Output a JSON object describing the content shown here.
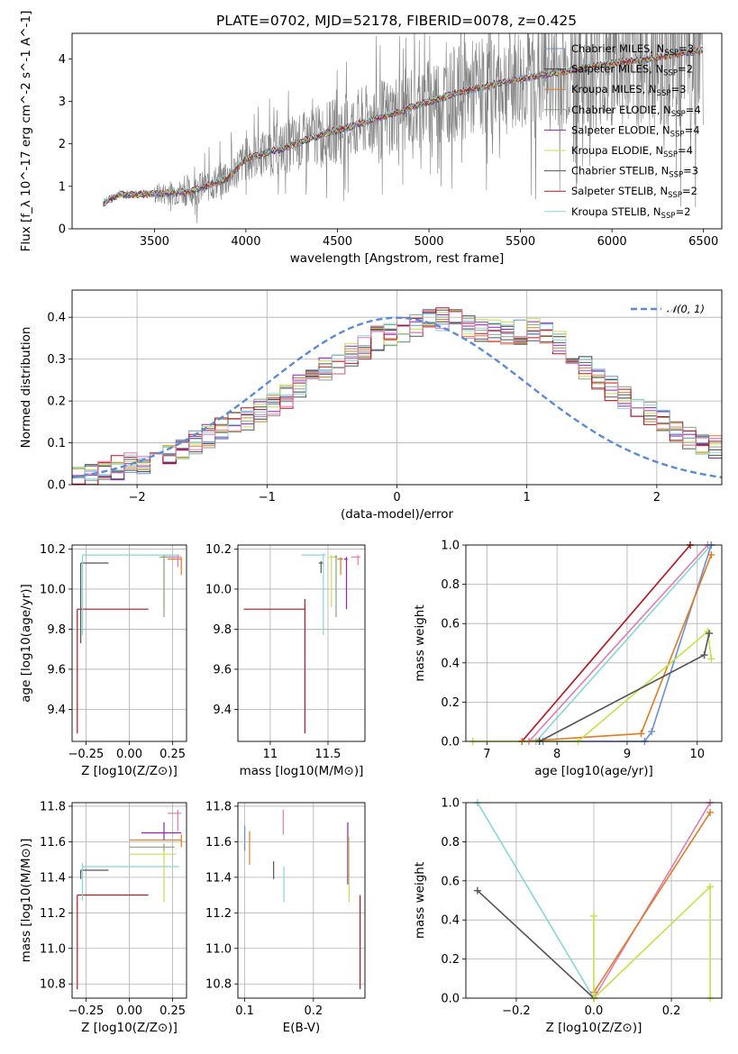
{
  "figure": {
    "title": "PLATE=0702, MJD=52178, FIBERID=0078, z=0.425"
  },
  "colors": {
    "Chabrier MILES": "#6a8fd6",
    "Salpeter MILES": "#3a3a3a",
    "Kroupa MILES": "#e07b23",
    "Chabrier ELODIE": "#8aa08a",
    "Salpeter ELODIE": "#8f22b8",
    "Kroupa ELODIE": "#c6e04a",
    "Chabrier STELIB": "#555555",
    "Salpeter STELIB": "#b5121b",
    "Kroupa STELIB": "#86d6d8",
    "pink": "#e37ab4",
    "data": "#808080",
    "normal": "#5b8bd5",
    "grid": "#b0b0b0"
  },
  "chart_data": [
    {
      "id": "spectrum",
      "type": "line",
      "title": "PLATE=0702, MJD=52178, FIBERID=0078, z=0.425",
      "xlabel": "wavelength [Angstrom, rest frame]",
      "ylabel": "Flux [f_λ 10^-17 erg cm^-2 s^-1 A^-1]",
      "xlim": [
        3050,
        6600
      ],
      "ylim": [
        0,
        4.6
      ],
      "xticks": [
        3500,
        4000,
        4500,
        5000,
        5500,
        6000,
        6500
      ],
      "yticks": [
        0,
        1,
        2,
        3,
        4
      ],
      "grid": false,
      "legend_position": "top-right",
      "data_range": [
        3220,
        6500
      ],
      "continuum": [
        [
          3220,
          0.6
        ],
        [
          3300,
          0.8
        ],
        [
          3500,
          0.82
        ],
        [
          3700,
          0.88
        ],
        [
          3900,
          1.2
        ],
        [
          4000,
          1.65
        ],
        [
          4200,
          1.9
        ],
        [
          4400,
          2.2
        ],
        [
          4600,
          2.45
        ],
        [
          4800,
          2.7
        ],
        [
          5000,
          3.0
        ],
        [
          5200,
          3.25
        ],
        [
          5400,
          3.45
        ],
        [
          5600,
          3.6
        ],
        [
          5800,
          3.75
        ],
        [
          6000,
          3.9
        ],
        [
          6200,
          4.0
        ],
        [
          6400,
          4.15
        ],
        [
          6500,
          4.2
        ]
      ],
      "legend": [
        {
          "label": "Chabrier MILES, N",
          "sub": "SSP",
          "suffix": "=3",
          "series": "Chabrier MILES"
        },
        {
          "label": "Salpeter MILES, N",
          "sub": "SSP",
          "suffix": "=2",
          "series": "Salpeter MILES"
        },
        {
          "label": "Kroupa MILES, N",
          "sub": "SSP",
          "suffix": "=3",
          "series": "Kroupa MILES"
        },
        {
          "label": "Chabrier ELODIE, N",
          "sub": "SSP",
          "suffix": "=4",
          "series": "Chabrier ELODIE"
        },
        {
          "label": "Salpeter ELODIE, N",
          "sub": "SSP",
          "suffix": "=4",
          "series": "Salpeter ELODIE"
        },
        {
          "label": "Kroupa ELODIE, N",
          "sub": "SSP",
          "suffix": "=4",
          "series": "Kroupa ELODIE"
        },
        {
          "label": "Chabrier STELIB, N",
          "sub": "SSP",
          "suffix": "=3",
          "series": "Chabrier STELIB"
        },
        {
          "label": "Salpeter STELIB, N",
          "sub": "SSP",
          "suffix": "=2",
          "series": "Salpeter STELIB"
        },
        {
          "label": "Kroupa STELIB, N",
          "sub": "SSP",
          "suffix": "=2",
          "series": "Kroupa STELIB"
        }
      ]
    },
    {
      "id": "residuals",
      "type": "histogram",
      "xlabel": "(data-model)/error",
      "ylabel": "Normed distribution",
      "xlim": [
        -2.5,
        2.5
      ],
      "ylim": [
        0,
        0.465
      ],
      "xticks": [
        -2,
        -1,
        0,
        1,
        2
      ],
      "yticks": [
        0.0,
        0.1,
        0.2,
        0.3,
        0.4
      ],
      "grid": true,
      "legend_position": "top-right",
      "legend": "N(0,1)",
      "bin_edges_start": -2.5,
      "bin_width": 0.1,
      "base_profile": [
        0.02,
        0.025,
        0.03,
        0.04,
        0.05,
        0.055,
        0.06,
        0.07,
        0.085,
        0.1,
        0.115,
        0.13,
        0.145,
        0.16,
        0.175,
        0.19,
        0.21,
        0.235,
        0.26,
        0.275,
        0.29,
        0.31,
        0.33,
        0.35,
        0.36,
        0.37,
        0.38,
        0.39,
        0.395,
        0.39,
        0.38,
        0.37,
        0.365,
        0.36,
        0.365,
        0.37,
        0.36,
        0.34,
        0.31,
        0.28,
        0.25,
        0.23,
        0.21,
        0.19,
        0.17,
        0.15,
        0.13,
        0.115,
        0.1,
        0.09
      ],
      "normal_curve": {
        "mean": 0,
        "sigma": 1
      }
    },
    {
      "id": "age_vs_Z",
      "type": "errorbar",
      "xlabel": "Z [log10(Z/Z⊙)]",
      "ylabel": "age  [log10(age/yr)]",
      "xlim": [
        -0.33,
        0.33
      ],
      "ylim": [
        9.24,
        10.22
      ],
      "xticks": [
        -0.25,
        0.0,
        0.25
      ],
      "xticklabels": [
        "−0.25",
        "0.00",
        "0.25"
      ],
      "yticks": [
        9.4,
        9.6,
        9.8,
        10.0,
        10.2
      ],
      "grid": true,
      "points": [
        {
          "s": "Salpeter STELIB",
          "x": -0.3,
          "y": 9.9,
          "xe": [
            0,
            0.41
          ],
          "ye": [
            0.62,
            0
          ]
        },
        {
          "s": "Salpeter STELIB",
          "x": 0.11,
          "y": 9.9,
          "xe": [
            0,
            0
          ],
          "ye": [
            0,
            0
          ]
        },
        {
          "s": "Chabrier STELIB",
          "x": -0.28,
          "y": 10.13,
          "xe": [
            0,
            0.16
          ],
          "ye": [
            0.4,
            0
          ]
        },
        {
          "s": "Kroupa STELIB",
          "x": -0.27,
          "y": 10.17,
          "xe": [
            0,
            0.56
          ],
          "ye": [
            0.4,
            0
          ]
        },
        {
          "s": "Kroupa ELODIE",
          "x": 0.2,
          "y": 10.16,
          "xe": [
            0.03,
            0.07
          ],
          "ye": [
            0.25,
            0.01
          ]
        },
        {
          "s": "Chabrier ELODIE",
          "x": 0.2,
          "y": 10.16,
          "xe": [
            0.02,
            0.06
          ],
          "ye": [
            0.3,
            0.01
          ]
        },
        {
          "s": "Kroupa MILES",
          "x": 0.3,
          "y": 10.15,
          "xe": [
            0.08,
            0.0
          ],
          "ye": [
            0.08,
            0.01
          ]
        },
        {
          "s": "pink",
          "x": 0.28,
          "y": 10.16,
          "xe": [
            0.06,
            0.02
          ],
          "ye": [
            0.05,
            0.01
          ]
        }
      ]
    },
    {
      "id": "age_vs_mass",
      "type": "errorbar",
      "xlabel": "mass [log10(M/M⊙)]",
      "ylabel": "",
      "xlim": [
        10.72,
        11.82
      ],
      "ylim": [
        9.24,
        10.22
      ],
      "xticks": [
        11.0,
        11.5
      ],
      "yticks": [
        9.4,
        9.6,
        9.8,
        10.0,
        10.2
      ],
      "grid": true,
      "points": [
        {
          "s": "Salpeter STELIB",
          "x": 11.3,
          "y": 9.9,
          "xe": [
            0.53,
            0
          ],
          "ye": [
            0.62,
            0.05
          ]
        },
        {
          "s": "Chabrier STELIB",
          "x": 11.44,
          "y": 10.13,
          "xe": [
            0.02,
            0.02
          ],
          "ye": [
            0.05,
            0.01
          ]
        },
        {
          "s": "Kroupa STELIB",
          "x": 11.46,
          "y": 10.17,
          "xe": [
            0.19,
            0.02
          ],
          "ye": [
            0.4,
            0.01
          ]
        },
        {
          "s": "Kroupa ELODIE",
          "x": 11.53,
          "y": 10.16,
          "xe": [
            0.02,
            0.03
          ],
          "ye": [
            0.25,
            0.01
          ]
        },
        {
          "s": "Chabrier ELODIE",
          "x": 11.57,
          "y": 10.16,
          "xe": [
            0.01,
            0.01
          ],
          "ye": [
            0.3,
            0.01
          ]
        },
        {
          "s": "Kroupa MILES",
          "x": 11.61,
          "y": 10.15,
          "xe": [
            0.03,
            0.02
          ],
          "ye": [
            0.08,
            0.01
          ]
        },
        {
          "s": "Salpeter ELODIE",
          "x": 11.66,
          "y": 10.15,
          "xe": [
            0.02,
            0.01
          ],
          "ye": [
            0.25,
            0.01
          ]
        },
        {
          "s": "pink",
          "x": 11.76,
          "y": 10.16,
          "xe": [
            0.06,
            0.02
          ],
          "ye": [
            0.04,
            0.01
          ]
        }
      ]
    },
    {
      "id": "mass_weight_vs_age",
      "type": "line",
      "xlabel": "age  [log10(age/yr)]",
      "ylabel": "mass weight",
      "xlim": [
        6.7,
        10.35
      ],
      "ylim": [
        0,
        1
      ],
      "xticks": [
        7,
        8,
        9,
        10
      ],
      "yticks": [
        0.0,
        0.2,
        0.4,
        0.6,
        0.8,
        1.0
      ],
      "grid": true,
      "series": [
        {
          "s": "Salpeter STELIB",
          "x": [
            7.5,
            9.9
          ],
          "y": [
            0,
            1.0
          ]
        },
        {
          "s": "pink",
          "x": [
            7.6,
            10.15
          ],
          "y": [
            0,
            1.0
          ]
        },
        {
          "s": "Kroupa STELIB",
          "x": [
            7.7,
            10.2
          ],
          "y": [
            0,
            1.0
          ]
        },
        {
          "s": "Chabrier MILES",
          "x": [
            7.8,
            9.25,
            9.35,
            10.2
          ],
          "y": [
            0,
            0.0,
            0.05,
            1.0
          ]
        },
        {
          "s": "Kroupa MILES",
          "x": [
            7.5,
            9.2,
            10.2
          ],
          "y": [
            0,
            0.04,
            0.95
          ]
        },
        {
          "s": "Kroupa ELODIE",
          "x": [
            6.8,
            8.3,
            10.15,
            10.2
          ],
          "y": [
            0,
            0,
            0.56,
            0.42
          ]
        },
        {
          "s": "Chabrier STELIB",
          "x": [
            7.75,
            10.1,
            10.17
          ],
          "y": [
            0,
            0.44,
            0.55
          ]
        }
      ]
    },
    {
      "id": "mass_vs_Z",
      "type": "errorbar",
      "xlabel": "Z [log10(Z/Z⊙)]",
      "ylabel": "mass [log10(M/M⊙)]",
      "xlim": [
        -0.33,
        0.33
      ],
      "ylim": [
        10.72,
        11.82
      ],
      "xticks": [
        -0.25,
        0.0,
        0.25
      ],
      "xticklabels": [
        "−0.25",
        "0.00",
        "0.25"
      ],
      "yticks": [
        10.8,
        11.0,
        11.2,
        11.4,
        11.6,
        11.8
      ],
      "grid": true,
      "points": [
        {
          "s": "Salpeter STELIB",
          "x": -0.3,
          "y": 11.3,
          "xe": [
            0,
            0.41
          ],
          "ye": [
            0.53,
            0
          ]
        },
        {
          "s": "Chabrier STELIB",
          "x": -0.28,
          "y": 11.44,
          "xe": [
            0,
            0.16
          ],
          "ye": [
            0.05,
            0
          ]
        },
        {
          "s": "Kroupa STELIB",
          "x": -0.27,
          "y": 11.46,
          "xe": [
            0,
            0.56
          ],
          "ye": [
            0.19,
            0.02
          ]
        },
        {
          "s": "Kroupa ELODIE",
          "x": 0.2,
          "y": 11.53,
          "xe": [
            0.2,
            0.07
          ],
          "ye": [
            0.27,
            0.04
          ]
        },
        {
          "s": "Chabrier ELODIE",
          "x": 0.2,
          "y": 11.57,
          "xe": [
            0.2,
            0.06
          ],
          "ye": [
            0.02,
            0.02
          ]
        },
        {
          "s": "Kroupa MILES",
          "x": 0.3,
          "y": 11.61,
          "xe": [
            0.3,
            0
          ],
          "ye": [
            0.04,
            0.03
          ]
        },
        {
          "s": "Salpeter ELODIE",
          "x": 0.2,
          "y": 11.65,
          "xe": [
            0.13,
            0.1
          ],
          "ye": [
            0.04,
            0.06
          ]
        },
        {
          "s": "pink",
          "x": 0.28,
          "y": 11.76,
          "xe": [
            0.06,
            0.02
          ],
          "ye": [
            0.1,
            0.02
          ]
        }
      ]
    },
    {
      "id": "mass_vs_EBV",
      "type": "errorbar",
      "xlabel": "E(B-V)",
      "ylabel": "",
      "xlim": [
        0.09,
        0.275
      ],
      "ylim": [
        10.72,
        11.82
      ],
      "xticks": [
        0.1,
        0.2
      ],
      "yticks": [
        10.8,
        11.0,
        11.2,
        11.4,
        11.6,
        11.8
      ],
      "grid": true,
      "points": [
        {
          "s": "Chabrier MILES",
          "x": 0.1,
          "y": 11.6,
          "xe": [
            0,
            0
          ],
          "ye": [
            0.05,
            0.09
          ]
        },
        {
          "s": "Kroupa MILES",
          "x": 0.107,
          "y": 11.57,
          "xe": [
            0,
            0
          ],
          "ye": [
            0.1,
            0.09
          ]
        },
        {
          "s": "Chabrier STELIB",
          "x": 0.142,
          "y": 11.44,
          "xe": [
            0,
            0
          ],
          "ye": [
            0.05,
            0.05
          ]
        },
        {
          "s": "pink",
          "x": 0.156,
          "y": 11.71,
          "xe": [
            0,
            0
          ],
          "ye": [
            0.07,
            0.07
          ]
        },
        {
          "s": "Kroupa STELIB",
          "x": 0.157,
          "y": 11.38,
          "xe": [
            0,
            0
          ],
          "ye": [
            0.12,
            0.08
          ]
        },
        {
          "s": "Salpeter ELODIE",
          "x": 0.25,
          "y": 11.56,
          "xe": [
            0,
            0
          ],
          "ye": [
            0.2,
            0.15
          ]
        },
        {
          "s": "Kroupa ELODIE",
          "x": 0.252,
          "y": 11.45,
          "xe": [
            0,
            0
          ],
          "ye": [
            0.19,
            0.18
          ]
        },
        {
          "s": "Salpeter STELIB",
          "x": 0.268,
          "y": 11.04,
          "xe": [
            0,
            0
          ],
          "ye": [
            0.27,
            0.26
          ]
        }
      ]
    },
    {
      "id": "mass_weight_vs_Z",
      "type": "line",
      "xlabel": "Z [log10(Z/Z⊙)]",
      "ylabel": "mass weight",
      "xlim": [
        -0.33,
        0.33
      ],
      "ylim": [
        0,
        1
      ],
      "xticks": [
        -0.2,
        0.0,
        0.2
      ],
      "xticklabels": [
        "−0.2",
        "0.0",
        "0.2"
      ],
      "yticks": [
        0.0,
        0.2,
        0.4,
        0.6,
        0.8,
        1.0
      ],
      "grid": true,
      "series": [
        {
          "s": "Kroupa STELIB",
          "x": [
            -0.3,
            0.0
          ],
          "y": [
            1.0,
            0.0
          ]
        },
        {
          "s": "Chabrier STELIB",
          "x": [
            -0.3,
            0.0
          ],
          "y": [
            0.55,
            0.0
          ]
        },
        {
          "s": "pink",
          "x": [
            0.0,
            0.3
          ],
          "y": [
            0.0,
            1.0
          ]
        },
        {
          "s": "Kroupa MILES",
          "x": [
            0.0,
            0.3
          ],
          "y": [
            0.03,
            0.95
          ]
        },
        {
          "s": "Kroupa ELODIE",
          "x": [
            0.0,
            0.3,
            0.3
          ],
          "y": [
            0.0,
            0.57,
            0.0
          ]
        },
        {
          "s": "Kroupa ELODIE",
          "x": [
            0.0,
            0.0
          ],
          "y": [
            0.0,
            0.42
          ]
        }
      ]
    }
  ]
}
